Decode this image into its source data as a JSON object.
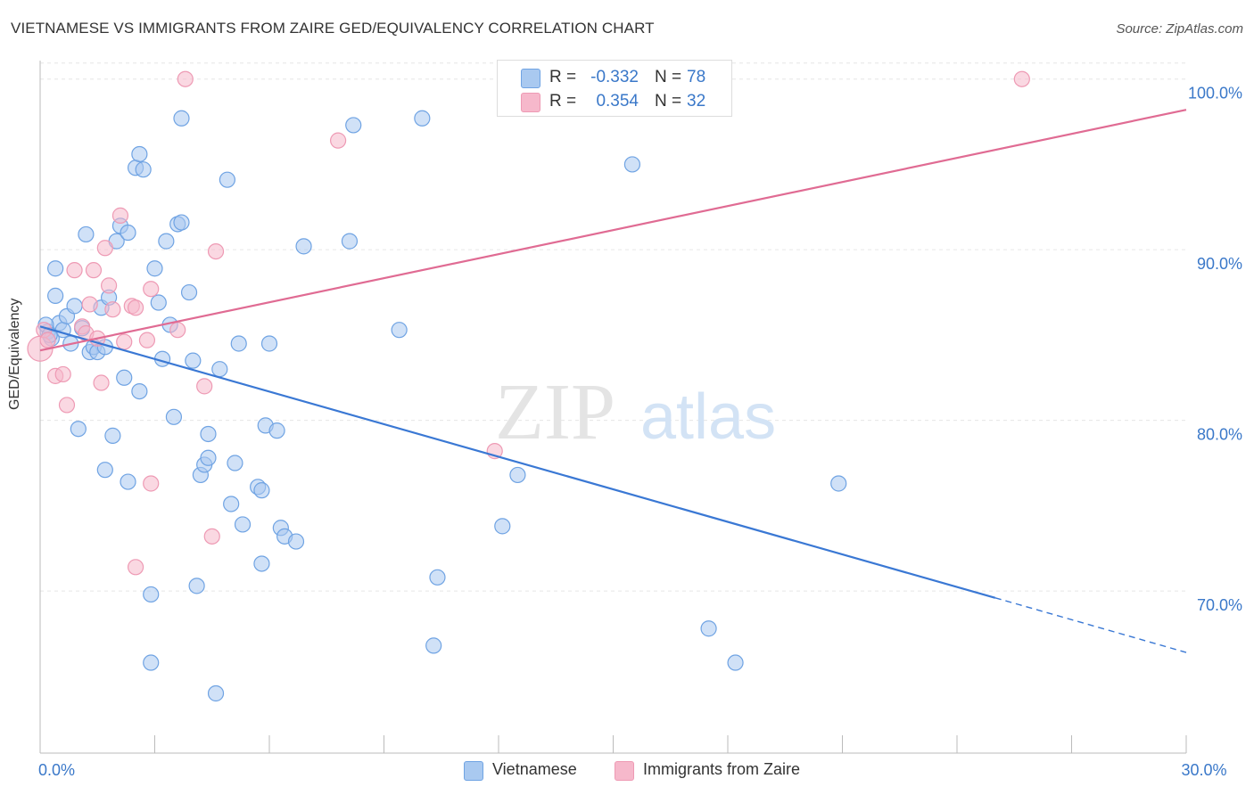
{
  "header": {
    "title": "VIETNAMESE VS IMMIGRANTS FROM ZAIRE GED/EQUIVALENCY CORRELATION CHART",
    "source": "Source: ZipAtlas.com"
  },
  "watermark": {
    "part1": "ZIP",
    "part2": "atlas"
  },
  "stats": [
    {
      "r_label": "R =",
      "r_value": "-0.332",
      "n_label": "N =",
      "n_value": "78",
      "color": "#a9c9f0"
    },
    {
      "r_label": "R =",
      "r_value": "0.354",
      "n_label": "N =",
      "n_value": "32",
      "color": "#f6b8cb"
    }
  ],
  "legend": [
    {
      "label": "Vietnamese",
      "color": "#a9c9f0"
    },
    {
      "label": "Immigrants from Zaire",
      "color": "#f6b8cb"
    }
  ],
  "chart_data": {
    "type": "scatter",
    "title": "VIETNAMESE VS IMMIGRANTS FROM ZAIRE GED/EQUIVALENCY CORRELATION CHART",
    "xlabel": "",
    "ylabel": "GED/Equivalency",
    "xlim": [
      0,
      30
    ],
    "ylim": [
      60.5,
      101.5
    ],
    "x_tick_labels": [
      {
        "value": 0,
        "label": "0.0%"
      },
      {
        "value": 30,
        "label": "30.0%"
      }
    ],
    "y_tick_labels": [
      {
        "value": 70,
        "label": "70.0%"
      },
      {
        "value": 80,
        "label": "80.0%"
      },
      {
        "value": 90,
        "label": "90.0%"
      },
      {
        "value": 100,
        "label": "100.0%"
      }
    ],
    "grid": true,
    "legend_position": "bottom",
    "series": [
      {
        "name": "Vietnamese",
        "color": "#6fa3e3",
        "fill": "#a9c9f0",
        "trend": {
          "x1": 0,
          "y1": 85.5,
          "x2": 25,
          "y2": 69.6,
          "dashed_to_x": 30,
          "dashed_to_y": 66.4,
          "color": "#3a78d4"
        },
        "points": [
          [
            0.2,
            85.2
          ],
          [
            0.3,
            84.8
          ],
          [
            0.4,
            87.3
          ],
          [
            0.4,
            88.9
          ],
          [
            0.5,
            85.7
          ],
          [
            0.6,
            85.3
          ],
          [
            0.7,
            86.1
          ],
          [
            0.8,
            84.5
          ],
          [
            0.9,
            86.7
          ],
          [
            1.0,
            79.5
          ],
          [
            1.1,
            85.4
          ],
          [
            1.2,
            90.9
          ],
          [
            1.3,
            84.0
          ],
          [
            1.4,
            84.3
          ],
          [
            1.5,
            84.0
          ],
          [
            1.6,
            86.6
          ],
          [
            1.7,
            84.3
          ],
          [
            1.7,
            77.1
          ],
          [
            1.8,
            87.2
          ],
          [
            1.9,
            79.1
          ],
          [
            2.0,
            90.5
          ],
          [
            2.1,
            91.4
          ],
          [
            2.2,
            82.5
          ],
          [
            2.3,
            91.0
          ],
          [
            2.3,
            76.4
          ],
          [
            2.5,
            94.8
          ],
          [
            2.6,
            95.6
          ],
          [
            2.6,
            81.7
          ],
          [
            2.7,
            94.7
          ],
          [
            2.9,
            69.8
          ],
          [
            2.9,
            65.8
          ],
          [
            3.0,
            88.9
          ],
          [
            3.1,
            86.9
          ],
          [
            3.2,
            83.6
          ],
          [
            3.3,
            90.5
          ],
          [
            3.4,
            85.6
          ],
          [
            3.5,
            80.2
          ],
          [
            3.6,
            91.5
          ],
          [
            3.7,
            91.6
          ],
          [
            3.7,
            97.7
          ],
          [
            3.9,
            87.5
          ],
          [
            4.0,
            83.5
          ],
          [
            4.1,
            70.3
          ],
          [
            4.2,
            76.8
          ],
          [
            4.3,
            77.4
          ],
          [
            4.4,
            79.2
          ],
          [
            4.4,
            77.8
          ],
          [
            4.6,
            64.0
          ],
          [
            4.7,
            83.0
          ],
          [
            4.9,
            94.1
          ],
          [
            5.0,
            75.1
          ],
          [
            5.1,
            77.5
          ],
          [
            5.2,
            84.5
          ],
          [
            5.3,
            73.9
          ],
          [
            5.7,
            76.1
          ],
          [
            5.8,
            75.9
          ],
          [
            5.8,
            71.6
          ],
          [
            5.9,
            79.7
          ],
          [
            6.0,
            84.5
          ],
          [
            6.2,
            79.4
          ],
          [
            6.3,
            73.7
          ],
          [
            6.4,
            73.2
          ],
          [
            6.7,
            72.9
          ],
          [
            6.9,
            90.2
          ],
          [
            8.1,
            90.5
          ],
          [
            8.2,
            97.3
          ],
          [
            9.4,
            85.3
          ],
          [
            10.0,
            97.7
          ],
          [
            10.3,
            66.8
          ],
          [
            10.4,
            70.8
          ],
          [
            12.1,
            73.8
          ],
          [
            12.5,
            76.8
          ],
          [
            15.5,
            95.0
          ],
          [
            17.5,
            67.8
          ],
          [
            18.2,
            65.8
          ],
          [
            20.9,
            76.3
          ],
          [
            0.15,
            85.6
          ],
          [
            0.25,
            85.0
          ]
        ]
      },
      {
        "name": "Immigrants from Zaire",
        "color": "#ee9ab4",
        "fill": "#f6b8cb",
        "trend": {
          "x1": 0,
          "y1": 84.1,
          "x2": 30,
          "y2": 98.2,
          "color": "#e06b93"
        },
        "points": [
          [
            0.0,
            84.2
          ],
          [
            0.1,
            85.3
          ],
          [
            0.2,
            84.7
          ],
          [
            0.4,
            82.6
          ],
          [
            0.6,
            82.7
          ],
          [
            0.7,
            80.9
          ],
          [
            0.9,
            88.8
          ],
          [
            1.1,
            85.5
          ],
          [
            1.2,
            85.1
          ],
          [
            1.3,
            86.8
          ],
          [
            1.4,
            88.8
          ],
          [
            1.5,
            84.8
          ],
          [
            1.6,
            82.2
          ],
          [
            1.7,
            90.1
          ],
          [
            1.8,
            87.9
          ],
          [
            1.9,
            86.5
          ],
          [
            2.1,
            92.0
          ],
          [
            2.2,
            84.6
          ],
          [
            2.4,
            86.7
          ],
          [
            2.5,
            86.6
          ],
          [
            2.5,
            71.4
          ],
          [
            2.8,
            84.7
          ],
          [
            2.9,
            87.7
          ],
          [
            2.9,
            76.3
          ],
          [
            3.6,
            85.3
          ],
          [
            3.8,
            100.0
          ],
          [
            4.3,
            82.0
          ],
          [
            4.5,
            73.2
          ],
          [
            4.6,
            89.9
          ],
          [
            7.8,
            96.4
          ],
          [
            11.9,
            78.2
          ],
          [
            25.7,
            100.0
          ]
        ]
      }
    ]
  }
}
